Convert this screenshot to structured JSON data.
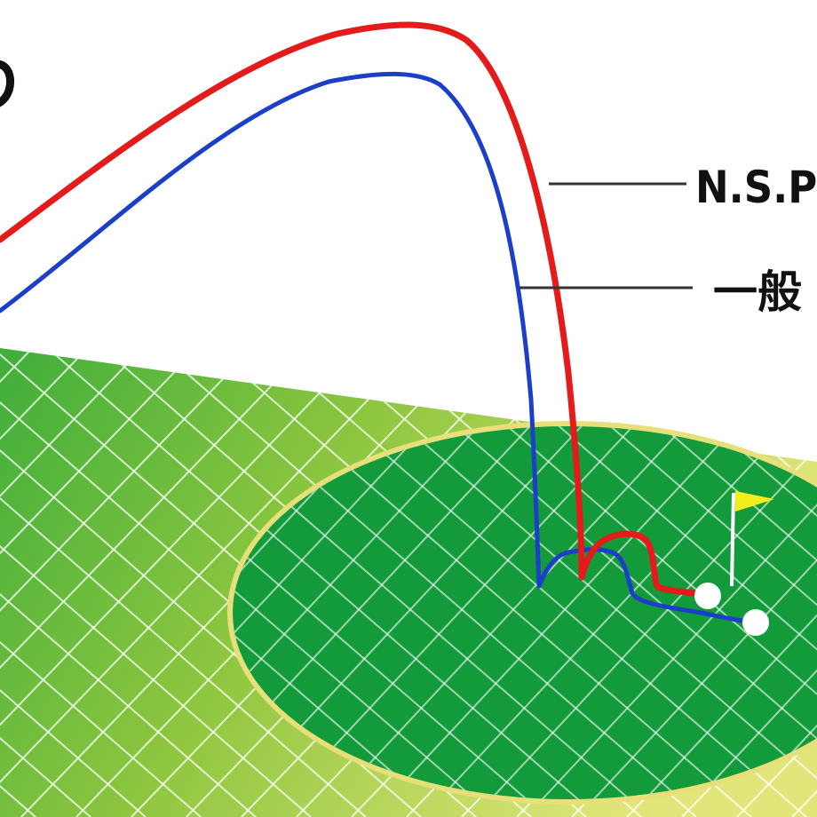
{
  "labels": {
    "red_trajectory": "N.S.P",
    "blue_trajectory": "一般"
  },
  "colors": {
    "red_trajectory": "#e31b1b",
    "blue_trajectory": "#1b3fc8",
    "fairway": "#8ec63f",
    "fairway_light": "#d6e36a",
    "green": "#139a3a",
    "green_edge": "#e7e07a",
    "grid": "#ffffff",
    "flag": "#f2ee1c",
    "ball": "#ffffff"
  },
  "icons": {
    "flag": "flag-icon",
    "balls": [
      "golf-ball-icon",
      "golf-ball-icon"
    ]
  }
}
